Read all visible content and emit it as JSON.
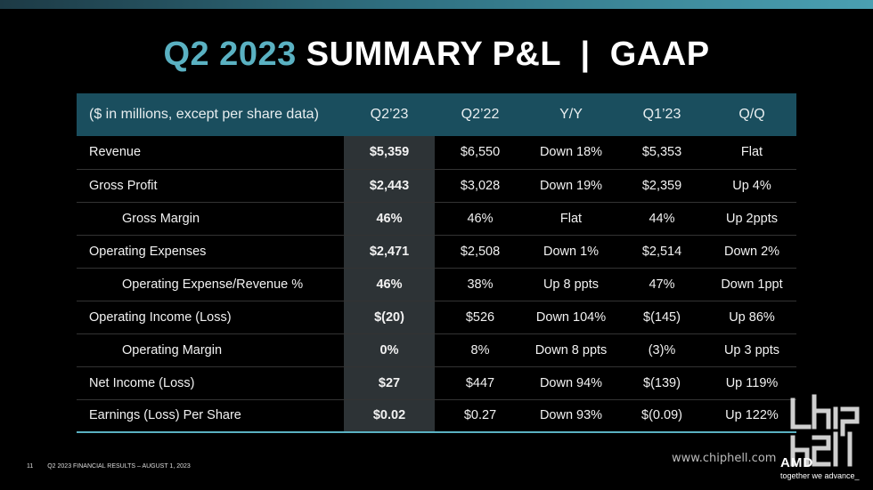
{
  "title": {
    "accent": "Q2 2023",
    "main": "SUMMARY P&L  |  GAAP"
  },
  "table": {
    "headers": [
      "($ in millions, except per share data)",
      "Q2’23",
      "Q2’22",
      "Y/Y",
      "Q1’23",
      "Q/Q"
    ],
    "rows": [
      [
        "Revenue",
        "$5,359",
        "$6,550",
        "Down 18%",
        "$5,353",
        "Flat"
      ],
      [
        "Gross Profit",
        "$2,443",
        "$3,028",
        "Down 19%",
        "$2,359",
        "Up 4%"
      ],
      [
        "Gross Margin",
        "46%",
        "46%",
        "Flat",
        "44%",
        "Up 2ppts"
      ],
      [
        "Operating Expenses",
        "$2,471",
        "$2,508",
        "Down 1%",
        "$2,514",
        "Down 2%"
      ],
      [
        "Operating Expense/Revenue %",
        "46%",
        "38%",
        "Up 8 ppts",
        "47%",
        "Down 1ppt"
      ],
      [
        "Operating Income (Loss)",
        "$(20)",
        "$526",
        "Down 104%",
        "$(145)",
        "Up 86%"
      ],
      [
        "Operating Margin",
        "0%",
        "8%",
        "Down 8 ppts",
        "(3)%",
        "Up 3 ppts"
      ],
      [
        "Net Income (Loss)",
        "$27",
        "$447",
        "Down 94%",
        "$(139)",
        "Up 119%"
      ],
      [
        "Earnings (Loss) Per Share",
        "$0.02",
        "$0.27",
        "Down 93%",
        "$(0.09)",
        "Up 122%"
      ]
    ]
  },
  "footer": {
    "page": "11",
    "text": "Q2 2023 FINANCIAL RESULTS – AUGUST 1, 2023"
  },
  "watermark": {
    "url": "www.chiphell.com"
  },
  "brand": {
    "logo": "AMD",
    "tagline": "together we advance_"
  },
  "colors": {
    "accent": "#5ab1c2",
    "header_bg": "#1a4e5e",
    "highlight_col": "#2d3336"
  }
}
